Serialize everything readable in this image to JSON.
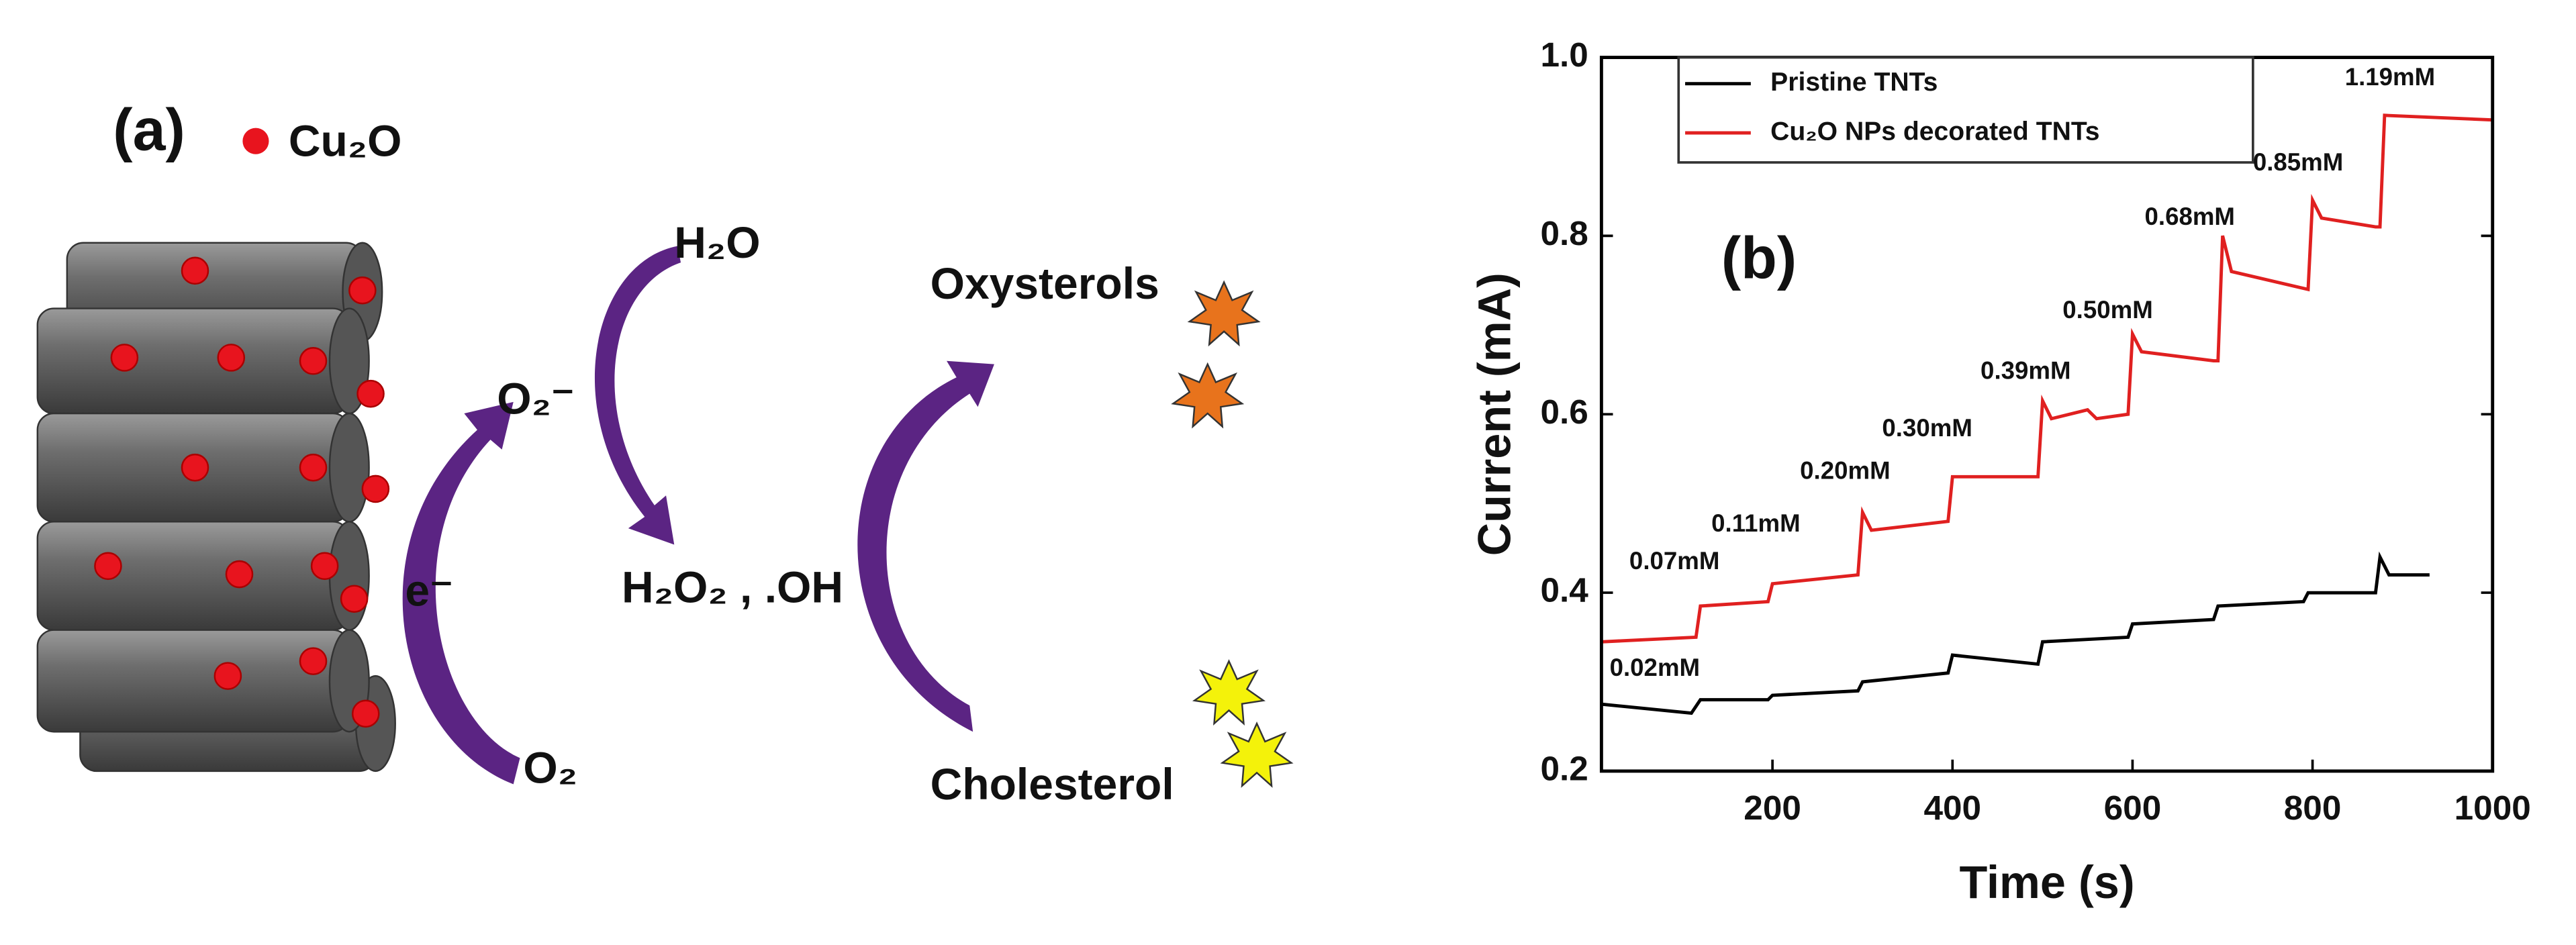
{
  "diagram": {
    "panel_label": "(a)",
    "legend_label": "Cu₂O",
    "superoxide": "O₂⁻",
    "water": "H₂O",
    "products": "H₂O₂ , .OH",
    "electron": "e⁻",
    "oxygen": "O₂",
    "oxysterols": "Oxysterols",
    "cholesterol": "Cholesterol"
  },
  "chart_data": {
    "type": "line",
    "panel_label": "(b)",
    "xlabel": "Time (s)",
    "ylabel": "Current (mA)",
    "xlim": [
      10,
      1000
    ],
    "xticks": [
      200,
      400,
      600,
      800,
      1000
    ],
    "ylim": [
      0.2,
      1.0
    ],
    "yticks": [
      0.2,
      0.4,
      0.6,
      0.8,
      {
        "value": 1.0,
        "label": "1.0"
      }
    ],
    "legend": "top-left",
    "series": [
      {
        "name": "Pristine TNTs",
        "color": "#000000",
        "x": [
          10,
          110,
          120,
          195,
          200,
          295,
          300,
          395,
          400,
          495,
          500,
          595,
          600,
          690,
          695,
          790,
          795,
          870,
          875,
          885,
          930
        ],
        "values": [
          0.275,
          0.265,
          0.28,
          0.28,
          0.285,
          0.29,
          0.3,
          0.31,
          0.33,
          0.32,
          0.345,
          0.35,
          0.365,
          0.37,
          0.385,
          0.39,
          0.4,
          0.4,
          0.44,
          0.42,
          0.42
        ]
      },
      {
        "name": "Cu₂O NPs decorated TNTs",
        "color": "#e02020",
        "x": [
          10,
          115,
          120,
          195,
          200,
          295,
          300,
          310,
          395,
          400,
          495,
          500,
          510,
          550,
          560,
          595,
          600,
          610,
          690,
          695,
          700,
          710,
          795,
          800,
          810,
          870,
          875,
          880,
          1000
        ],
        "values": [
          0.345,
          0.35,
          0.385,
          0.39,
          0.41,
          0.42,
          0.49,
          0.47,
          0.48,
          0.53,
          0.53,
          0.615,
          0.595,
          0.605,
          0.595,
          0.6,
          0.69,
          0.67,
          0.66,
          0.66,
          0.8,
          0.76,
          0.74,
          0.84,
          0.82,
          0.81,
          0.81,
          0.935,
          0.93
        ]
      }
    ],
    "annotations": [
      "0.02mM",
      "0.07mM",
      "0.11mM",
      "0.20mM",
      "0.30mM",
      "0.39mM",
      "0.50mM",
      "0.68mM",
      "0.85mM",
      "1.19mM"
    ]
  }
}
